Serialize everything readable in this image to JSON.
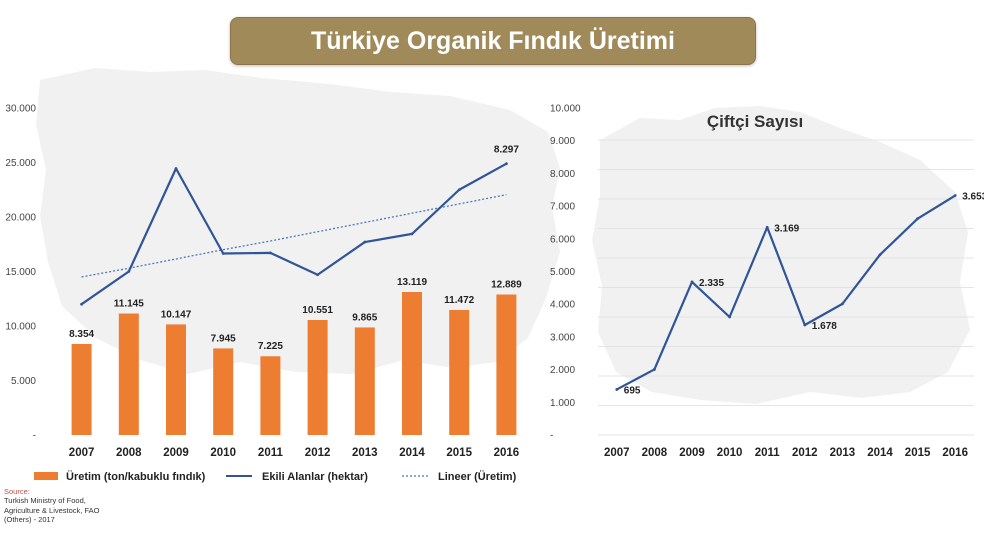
{
  "title": "Türkiye Organik Fındık Üretimi",
  "colors": {
    "bar": "#ed7d31",
    "line": "#2f5597",
    "trend": "#4a78c2",
    "title_bg": "#a18a5a",
    "map": "#f1f1f1",
    "grid": "#dddddd"
  },
  "chart_data": [
    {
      "type": "bar",
      "categories": [
        "2007",
        "2008",
        "2009",
        "2010",
        "2011",
        "2012",
        "2013",
        "2014",
        "2015",
        "2016"
      ],
      "series": [
        {
          "name": "Üretim (ton/kabuklu fındık)",
          "type": "bar",
          "axis": "left",
          "values": [
            8354,
            11145,
            10147,
            7945,
            7225,
            10551,
            9865,
            13119,
            11472,
            12889
          ],
          "labels": [
            "8.354",
            "11.145",
            "10.147",
            "7.945",
            "7.225",
            "10.551",
            "9.865",
            "13.119",
            "11.472",
            "12.889"
          ]
        },
        {
          "name": "Ekili Alanlar (hektar)",
          "type": "line",
          "axis": "right",
          "values": [
            4000,
            5000,
            8150,
            5550,
            5570,
            4900,
            5900,
            6150,
            7500,
            8297
          ],
          "labels": [
            "",
            "",
            "",
            "",
            "",
            "",
            "",
            "",
            "",
            "8.297"
          ]
        },
        {
          "name": "Lineer (Üretim)",
          "type": "trendline",
          "axis": "left",
          "values": [
            14500,
            15300,
            16150,
            17000,
            17800,
            18650,
            19500,
            20350,
            21200,
            22050
          ]
        }
      ],
      "y_left": {
        "ylim": [
          0,
          30000
        ],
        "ticks": [
          0,
          5000,
          10000,
          15000,
          20000,
          25000,
          30000
        ],
        "tick_labels": [
          "-",
          "5.000",
          "10.000",
          "15.000",
          "20.000",
          "25.000",
          "30.000"
        ]
      },
      "y_right": {
        "ylim": [
          0,
          10000
        ],
        "ticks": [
          0,
          1000,
          2000,
          3000,
          4000,
          5000,
          6000,
          7000,
          8000,
          9000,
          10000
        ],
        "tick_labels": [
          "-",
          "1.000",
          "2.000",
          "3.000",
          "4.000",
          "5.000",
          "6.000",
          "7.000",
          "8.000",
          "9.000",
          "10.000"
        ]
      },
      "legend": {
        "placement": "bottom",
        "items": [
          "Üretim (ton/kabuklu fındık)",
          "Ekili Alanlar (hektar)",
          "Lineer (Üretim)"
        ]
      },
      "grid": false
    },
    {
      "type": "line",
      "title": "Çiftçi Sayısı",
      "categories": [
        "2007",
        "2008",
        "2009",
        "2010",
        "2011",
        "2012",
        "2013",
        "2014",
        "2015",
        "2016"
      ],
      "series": [
        {
          "values": [
            695,
            1000,
            2335,
            1800,
            3169,
            1678,
            2000,
            2750,
            3300,
            3653
          ],
          "labels": [
            "695",
            "",
            "2.335",
            "",
            "3.169",
            "1.678",
            "",
            "",
            "",
            "3.653"
          ]
        }
      ],
      "ylim": [
        0,
        4500
      ],
      "grid": true,
      "gridline_count": 10
    }
  ],
  "source": {
    "heading": "Source:",
    "text": "Turkish Ministry of Food, Agriculture & Livestock, FAO (Others) - 2017"
  }
}
